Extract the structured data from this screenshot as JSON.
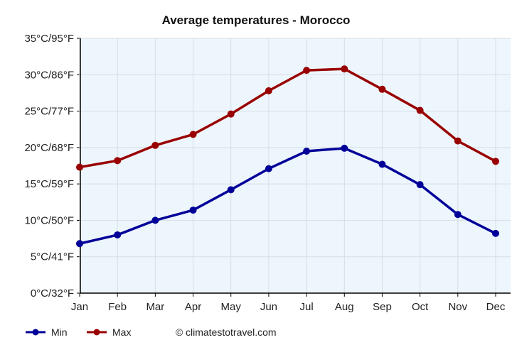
{
  "chart_data": {
    "type": "line",
    "title": "Average temperatures - Morocco",
    "categories": [
      "Jan",
      "Feb",
      "Mar",
      "Apr",
      "May",
      "Jun",
      "Jul",
      "Aug",
      "Sep",
      "Oct",
      "Nov",
      "Dec"
    ],
    "y_ticks": [
      "0°C/32°F",
      "5°C/41°F",
      "10°C/50°F",
      "15°C/59°F",
      "20°C/68°F",
      "25°C/77°F",
      "30°C/86°F",
      "35°C/95°F"
    ],
    "ylim": [
      0,
      35
    ],
    "grid": true,
    "legend_position": "bottom-left",
    "series": [
      {
        "name": "Min",
        "color": "#000099",
        "values": [
          6.8,
          8.0,
          10.0,
          11.4,
          14.2,
          17.1,
          19.5,
          19.9,
          17.7,
          14.9,
          10.8,
          8.2
        ]
      },
      {
        "name": "Max",
        "color": "#990000",
        "values": [
          17.3,
          18.2,
          20.3,
          21.8,
          24.6,
          27.8,
          30.6,
          30.8,
          28.0,
          25.1,
          20.9,
          18.1
        ]
      }
    ],
    "plot_background": "#eef6fd",
    "credit": "climatestotravel.com",
    "credit_symbol": "©"
  }
}
